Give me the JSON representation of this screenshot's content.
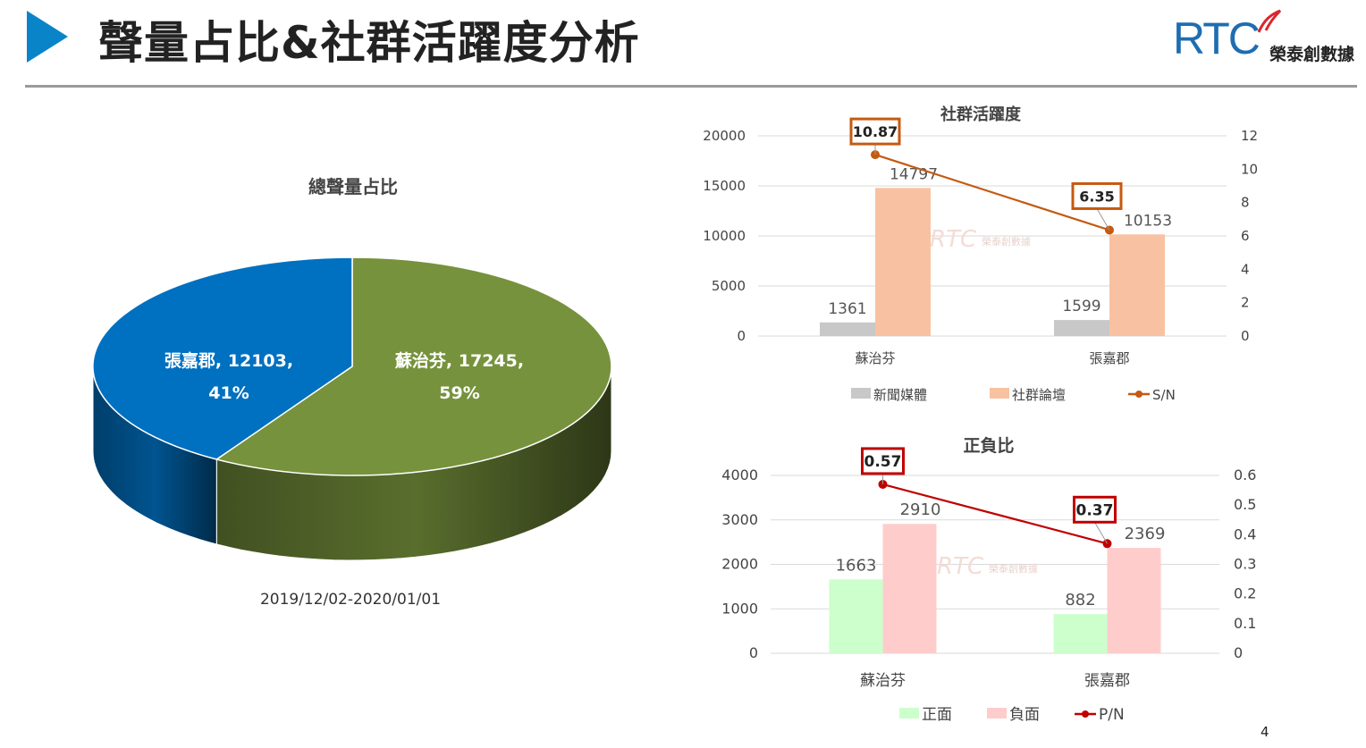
{
  "header": {
    "title": "聲量占比&社群活躍度分析",
    "logo_mark": "RTC",
    "logo_text": "榮泰創數據"
  },
  "page_number": "4",
  "watermark": {
    "mark": "RTC",
    "text": "榮泰創數據"
  },
  "chart_data": [
    {
      "type": "pie",
      "title": "總聲量占比",
      "subtitle": "2019/12/02-2020/01/01",
      "slices": [
        {
          "label": "蘇治芬",
          "value": 17245,
          "percent": "59%",
          "display": "蘇治芬, 17245,",
          "color": "#76923c"
        },
        {
          "label": "張嘉郡",
          "value": 12103,
          "percent": "41%",
          "display": "張嘉郡, 12103,",
          "color": "#0070c0"
        }
      ],
      "style": "3d"
    },
    {
      "type": "bar",
      "title": "社群活躍度",
      "categories": [
        "蘇治芬",
        "張嘉郡"
      ],
      "series": [
        {
          "name": "新聞媒體",
          "values": [
            1361,
            1599
          ],
          "color": "#c8c8c8",
          "axis": "left"
        },
        {
          "name": "社群論壇",
          "values": [
            14797,
            10153
          ],
          "color": "#f8c2a2",
          "axis": "left"
        },
        {
          "name": "S/N",
          "values": [
            10.87,
            6.35
          ],
          "labels": [
            "10.87",
            "6.35"
          ],
          "color": "#c55a11",
          "type": "line",
          "axis": "right"
        }
      ],
      "ylim": [
        0,
        20000
      ],
      "yticks": [
        "0",
        "5000",
        "10000",
        "15000",
        "20000"
      ],
      "y2lim": [
        0,
        12
      ],
      "y2ticks": [
        "0",
        "2",
        "4",
        "6",
        "8",
        "10",
        "12"
      ],
      "grid": true,
      "legend": "bottom"
    },
    {
      "type": "bar",
      "title": "正負比",
      "categories": [
        "蘇治芬",
        "張嘉郡"
      ],
      "series": [
        {
          "name": "正面",
          "values": [
            1663,
            882
          ],
          "color": "#ccffcc",
          "axis": "left"
        },
        {
          "name": "負面",
          "values": [
            2910,
            2369
          ],
          "color": "#ffcccc",
          "axis": "left"
        },
        {
          "name": "P/N",
          "values": [
            0.57,
            0.37
          ],
          "labels": [
            "0.57",
            "0.37"
          ],
          "color": "#c00000",
          "type": "line",
          "axis": "right"
        }
      ],
      "ylim": [
        0,
        4000
      ],
      "yticks": [
        "0",
        "1000",
        "2000",
        "3000",
        "4000"
      ],
      "y2lim": [
        0,
        0.6
      ],
      "y2ticks": [
        "0",
        "0.1",
        "0.2",
        "0.3",
        "0.4",
        "0.5",
        "0.6"
      ],
      "grid": true,
      "legend": "bottom"
    }
  ]
}
